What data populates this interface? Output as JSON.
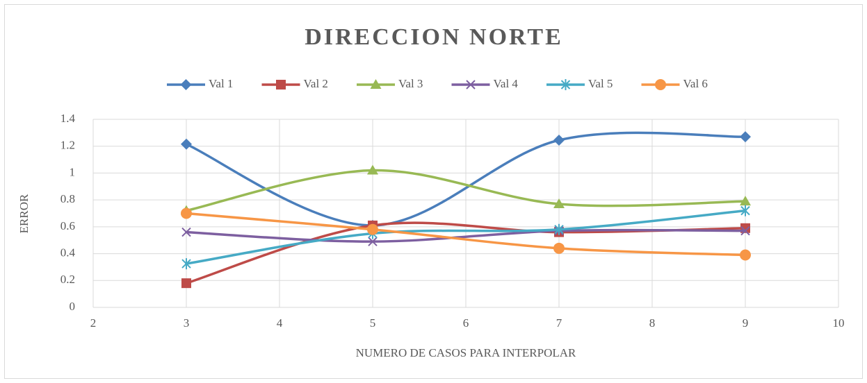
{
  "chart_data": {
    "type": "line",
    "title": "DIRECCION NORTE",
    "x_label": "NUMERO DE CASOS PARA INTERPOLAR",
    "y_label": "ERROR",
    "x": [
      3,
      5,
      7,
      9
    ],
    "series": [
      {
        "name": "Val 1",
        "color": "#4a7ebb",
        "marker": "diamond",
        "values": [
          1.215,
          0.61,
          1.245,
          1.27
        ]
      },
      {
        "name": "Val 2",
        "color": "#be4b48",
        "marker": "square",
        "values": [
          0.18,
          0.61,
          0.56,
          0.59
        ]
      },
      {
        "name": "Val 3",
        "color": "#98b954",
        "marker": "triangle",
        "values": [
          0.72,
          1.02,
          0.77,
          0.79
        ]
      },
      {
        "name": "Val 4",
        "color": "#7d5fa0",
        "marker": "x",
        "values": [
          0.56,
          0.49,
          0.57,
          0.57
        ]
      },
      {
        "name": "Val 5",
        "color": "#46aac5",
        "marker": "star",
        "values": [
          0.325,
          0.55,
          0.58,
          0.72
        ]
      },
      {
        "name": "Val 6",
        "color": "#f79646",
        "marker": "circle",
        "values": [
          0.7,
          0.58,
          0.44,
          0.39
        ]
      }
    ],
    "xlim": [
      2,
      10
    ],
    "xticks": [
      2,
      3,
      4,
      5,
      6,
      7,
      8,
      9,
      10
    ],
    "ylim": [
      0,
      1.4
    ],
    "yticks": [
      0,
      0.2,
      0.4,
      0.6,
      0.8,
      1,
      1.2,
      1.4
    ],
    "grid": true,
    "smooth": true,
    "legend": "top"
  }
}
